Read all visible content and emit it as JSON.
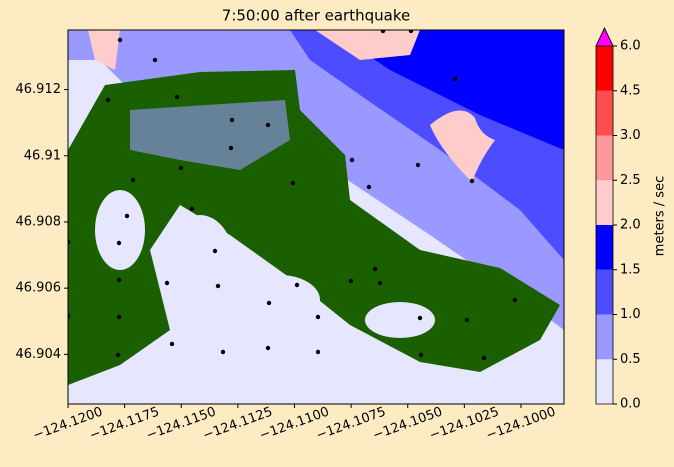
{
  "chart_data": {
    "type": "map",
    "title": "7:50:00 after earthquake",
    "xlim": [
      -124.12,
      -124.0981
    ],
    "ylim": [
      46.9025,
      46.9138
    ],
    "xticks": [
      {
        "value": -124.12,
        "label": "−124.1200"
      },
      {
        "value": -124.1175,
        "label": "−124.1175"
      },
      {
        "value": -124.115,
        "label": "−124.1150"
      },
      {
        "value": -124.1125,
        "label": "−124.1125"
      },
      {
        "value": -124.11,
        "label": "−124.1100"
      },
      {
        "value": -124.1075,
        "label": "−124.1075"
      },
      {
        "value": -124.105,
        "label": "−124.1050"
      },
      {
        "value": -124.1025,
        "label": "−124.1025"
      },
      {
        "value": -124.1,
        "label": "−124.1000"
      }
    ],
    "yticks": [
      46.904,
      46.906,
      46.908,
      46.91,
      46.912
    ],
    "colorbar": {
      "label": "meters / sec",
      "levels": [
        {
          "value": 0,
          "label": "0.0"
        },
        {
          "value": 0.5,
          "label": "0.5"
        },
        {
          "value": 1,
          "label": "1.0"
        },
        {
          "value": 1.5,
          "label": "1.5"
        },
        {
          "value": 2,
          "label": "2.0"
        },
        {
          "value": 2.5,
          "label": "2.5"
        },
        {
          "value": 3,
          "label": "3.0"
        },
        {
          "value": 4.5,
          "label": "4.5"
        },
        {
          "value": 6,
          "label": "6.0"
        }
      ],
      "colors": [
        "#e6e6ff",
        "#9999ff",
        "#4d4dff",
        "#0000ff",
        "#ffcccc",
        "#ff9999",
        "#ff4d4d",
        "#ff0000"
      ],
      "over_color": "#ff00ff"
    }
  }
}
